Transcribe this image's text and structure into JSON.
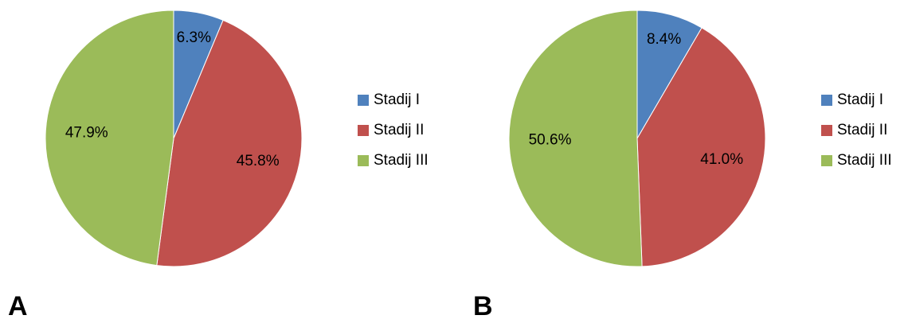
{
  "colors": {
    "stadij_1": "#4F81BD",
    "stadij_2": "#C0504D",
    "stadij_3": "#9BBB59",
    "slice_border": "#ffffff"
  },
  "chart_data": [
    {
      "type": "pie",
      "panel_label": "A",
      "categories": [
        "Stadij I",
        "Stadij II",
        "Stadij III"
      ],
      "values": [
        6.3,
        45.8,
        47.9
      ],
      "value_labels": [
        "6.3%",
        "45.8%",
        "47.9%"
      ],
      "legend_position": "right"
    },
    {
      "type": "pie",
      "panel_label": "B",
      "categories": [
        "Stadij I",
        "Stadij II",
        "Stadij III"
      ],
      "values": [
        8.4,
        41.0,
        50.6
      ],
      "value_labels": [
        "8.4%",
        "41.0%",
        "50.6%"
      ],
      "legend_position": "right"
    }
  ]
}
